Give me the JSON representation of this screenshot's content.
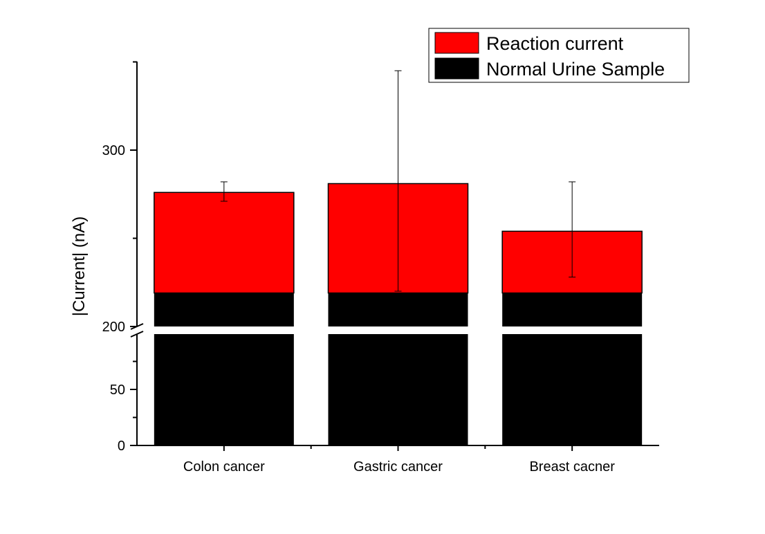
{
  "chart_data": {
    "type": "bar",
    "stacked": true,
    "categories": [
      "Colon cancer",
      "Gastric cancer",
      "Breast cacner"
    ],
    "series": [
      {
        "name": "Normal Urine Sample",
        "values": [
          219,
          219,
          219
        ],
        "color": "#000000"
      },
      {
        "name": "Reaction current",
        "values": [
          57,
          62,
          35
        ],
        "color": "#ff0000",
        "error": [
          [
            271,
            282
          ],
          [
            220,
            345
          ],
          [
            228,
            282
          ]
        ]
      }
    ],
    "totals": [
      276,
      281,
      254
    ],
    "ylabel": "|Current| (nA)",
    "xlabel": "",
    "y_axis_break": {
      "lower_range": [
        0,
        95
      ],
      "upper_range": [
        200,
        350
      ]
    },
    "yticks": [
      0,
      50,
      200,
      300
    ],
    "legend_position": "top-right",
    "grid": false
  }
}
